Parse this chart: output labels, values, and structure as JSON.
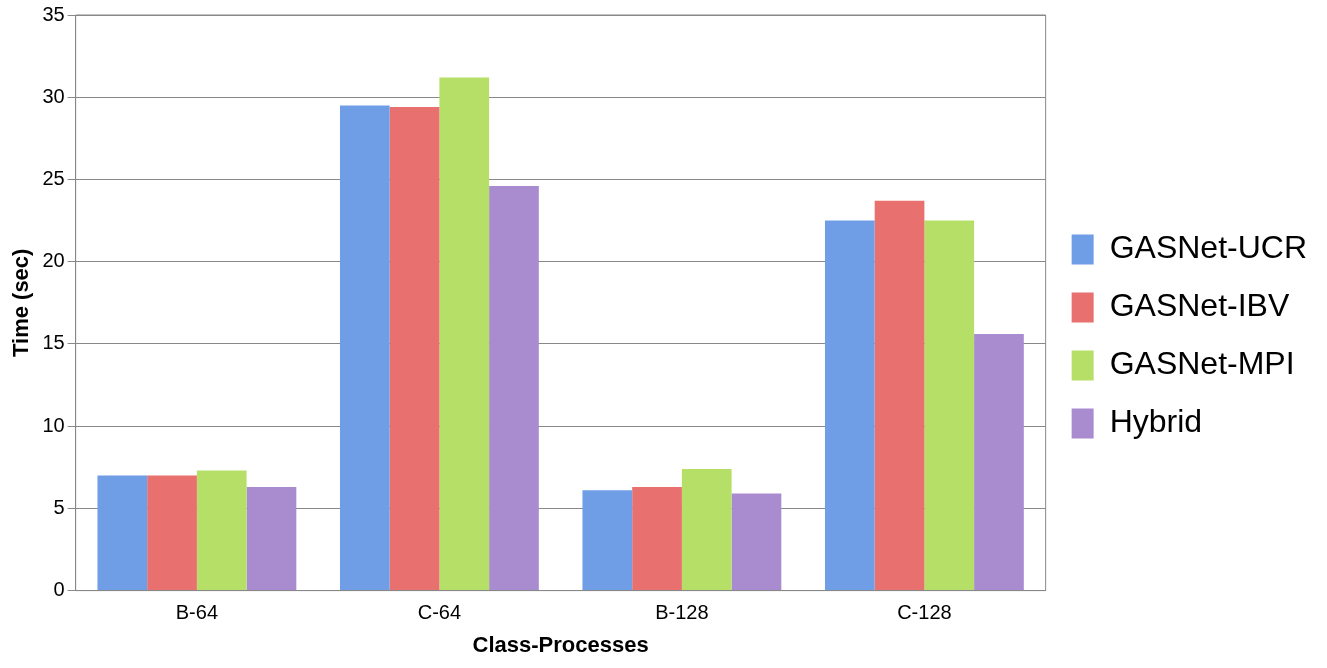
{
  "chart_data": {
    "type": "bar",
    "xlabel": "Class-Processes",
    "ylabel": "Time (sec)",
    "categories": [
      "B-64",
      "C-64",
      "B-128",
      "C-128"
    ],
    "series": [
      {
        "name": "GASNet-UCR",
        "color": "#6f9ee6",
        "values": [
          7.0,
          29.5,
          6.1,
          22.5
        ]
      },
      {
        "name": "GASNet-IBV",
        "color": "#e8706e",
        "values": [
          7.0,
          29.4,
          6.3,
          23.7
        ]
      },
      {
        "name": "GASNet-MPI",
        "color": "#b5df66",
        "values": [
          7.3,
          31.2,
          7.4,
          22.5
        ]
      },
      {
        "name": "Hybrid",
        "color": "#a98bd0",
        "values": [
          6.3,
          24.6,
          5.9,
          15.6
        ]
      }
    ],
    "ylim": [
      0,
      35
    ],
    "yticks": [
      0,
      5,
      10,
      15,
      20,
      25,
      30,
      35
    ],
    "grid": "y",
    "legend": "right"
  }
}
